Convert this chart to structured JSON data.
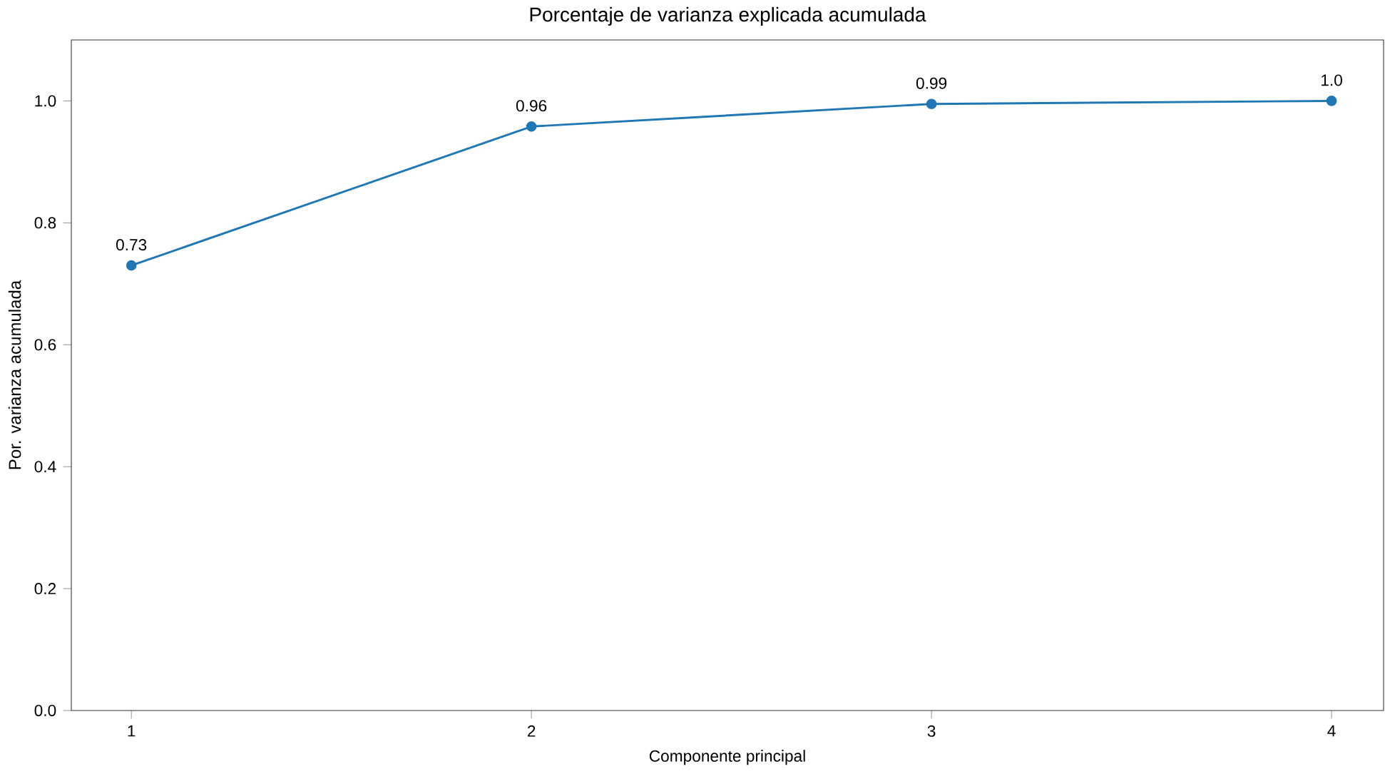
{
  "chart_data": {
    "type": "line",
    "title": "Porcentaje de varianza explicada acumulada",
    "xlabel": "Componente principal",
    "ylabel": "Por. varianza acumulada",
    "x": [
      1,
      2,
      3,
      4
    ],
    "series": [
      {
        "color": "#1f77b4",
        "values": [
          0.73,
          0.958,
          0.995,
          1.0
        ],
        "value_labels": [
          "0.73",
          "0.96",
          "0.99",
          "1.0"
        ]
      }
    ],
    "xlim": [
      0.85,
      4.13
    ],
    "ylim": [
      0,
      1.1
    ],
    "xticks": [
      1,
      2,
      3,
      4
    ],
    "yticks": [
      {
        "value": 0,
        "label": "0.0"
      },
      0.2,
      0.4,
      0.6,
      0.8,
      {
        "value": 1,
        "label": "1.0"
      }
    ],
    "marker": "circle",
    "line_style": "solid",
    "grid": false
  }
}
